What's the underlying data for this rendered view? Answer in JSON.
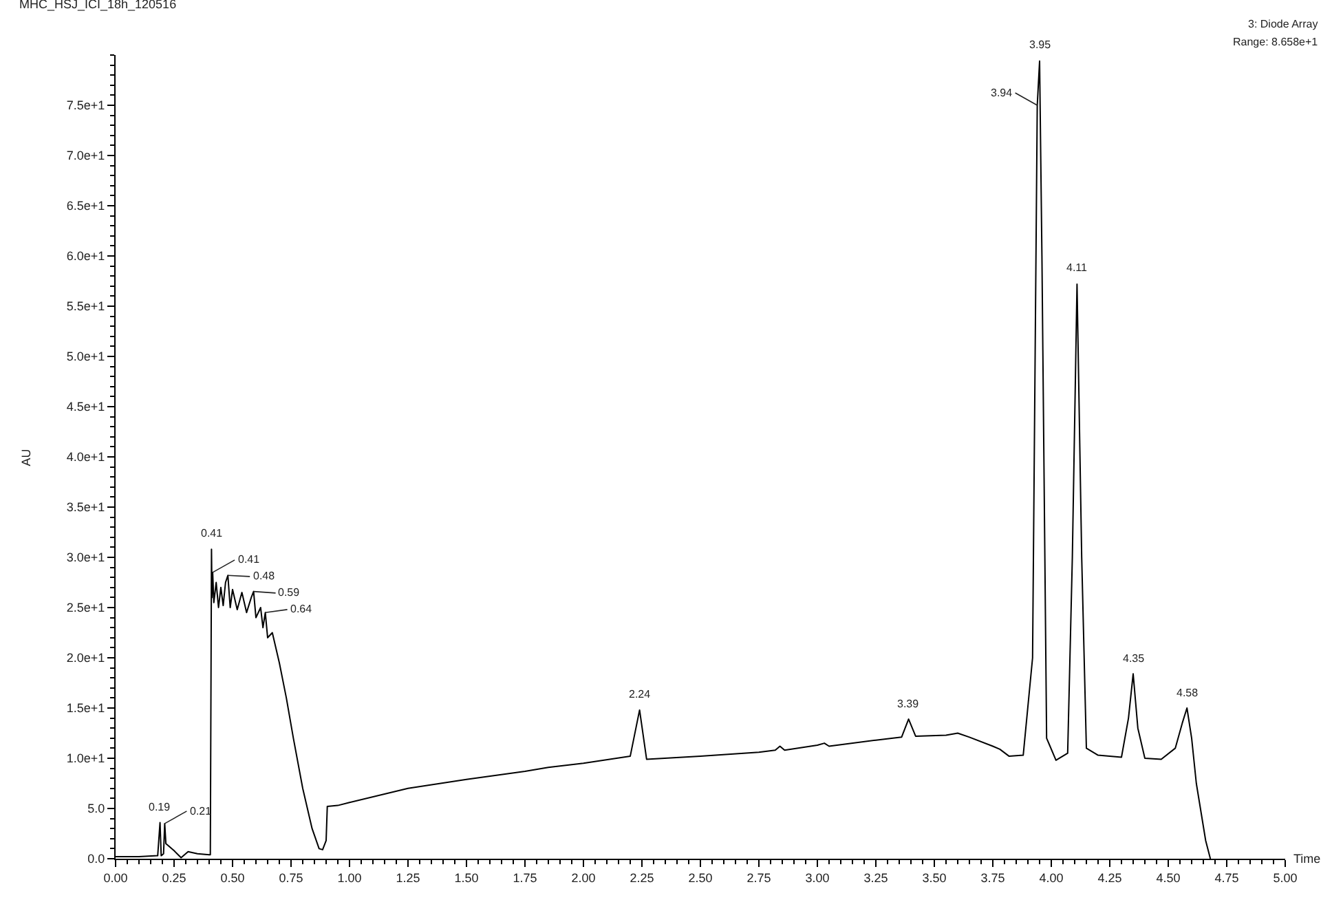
{
  "chart_data": {
    "type": "line",
    "title": "MHC_HSJ_ICI_18h_120516",
    "xlabel": "Time",
    "ylabel": "AU",
    "x": [
      0,
      0.1,
      0.18,
      0.19,
      0.195,
      0.205,
      0.21,
      0.215,
      0.25,
      0.28,
      0.31,
      0.35,
      0.4,
      0.405,
      0.41,
      0.412,
      0.415,
      0.42,
      0.43,
      0.44,
      0.45,
      0.46,
      0.47,
      0.48,
      0.49,
      0.5,
      0.52,
      0.54,
      0.56,
      0.58,
      0.59,
      0.6,
      0.62,
      0.63,
      0.64,
      0.65,
      0.67,
      0.7,
      0.73,
      0.76,
      0.8,
      0.84,
      0.87,
      0.885,
      0.9,
      0.905,
      0.95,
      1.0,
      1.25,
      1.5,
      1.75,
      1.85,
      2.0,
      2.2,
      2.24,
      2.27,
      2.5,
      2.75,
      2.82,
      2.84,
      2.86,
      3.0,
      3.03,
      3.05,
      3.25,
      3.36,
      3.39,
      3.42,
      3.55,
      3.6,
      3.65,
      3.75,
      3.78,
      3.82,
      3.88,
      3.92,
      3.94,
      3.95,
      3.96,
      3.98,
      4.02,
      4.07,
      4.09,
      4.11,
      4.13,
      4.15,
      4.2,
      4.3,
      4.33,
      4.35,
      4.37,
      4.4,
      4.47,
      4.53,
      4.56,
      4.58,
      4.6,
      4.62,
      4.66,
      4.68
    ],
    "values": [
      0.2,
      0.2,
      0.3,
      3.6,
      0.3,
      0.5,
      3.5,
      1.5,
      0.8,
      0.1,
      0.7,
      0.5,
      0.4,
      0.4,
      30.8,
      26,
      28.5,
      25.5,
      27.5,
      25,
      27,
      25.2,
      27.5,
      28.2,
      25,
      26.8,
      24.8,
      26.5,
      24.5,
      26,
      26.6,
      24,
      25,
      23,
      24.5,
      22,
      22.5,
      19.5,
      16,
      12,
      7,
      3,
      1.0,
      0.9,
      1.8,
      5.2,
      5.3,
      5.6,
      7.0,
      7.9,
      8.7,
      9.1,
      9.5,
      10.2,
      14.8,
      9.9,
      10.2,
      10.6,
      10.8,
      11.2,
      10.8,
      11.3,
      11.5,
      11.2,
      11.8,
      12.1,
      13.9,
      12.2,
      12.3,
      12.5,
      12.1,
      11.2,
      10.9,
      10.2,
      10.3,
      20,
      75,
      79.4,
      60,
      12,
      9.8,
      10.5,
      30,
      57.2,
      30,
      11,
      10.3,
      10.1,
      14,
      18.4,
      13,
      10,
      9.9,
      11,
      13.5,
      15.0,
      12,
      7.5,
      1.8,
      0.0
    ],
    "color": "#000000",
    "marker": "none",
    "line_style": "solid",
    "xlim": [
      0,
      5.0
    ],
    "ylim": [
      0,
      80
    ],
    "xticks": [
      {
        "value": 0,
        "label": "0.00"
      },
      {
        "value": 0.25,
        "label": "0.25"
      },
      {
        "value": 0.5,
        "label": "0.50"
      },
      {
        "value": 0.75,
        "label": "0.75"
      },
      {
        "value": 1.0,
        "label": "1.00"
      },
      {
        "value": 1.25,
        "label": "1.25"
      },
      {
        "value": 1.5,
        "label": "1.50"
      },
      {
        "value": 1.75,
        "label": "1.75"
      },
      {
        "value": 2.0,
        "label": "2.00"
      },
      {
        "value": 2.25,
        "label": "2.25"
      },
      {
        "value": 2.5,
        "label": "2.50"
      },
      {
        "value": 2.75,
        "label": "2.75"
      },
      {
        "value": 3.0,
        "label": "3.00"
      },
      {
        "value": 3.25,
        "label": "3.25"
      },
      {
        "value": 3.5,
        "label": "3.50"
      },
      {
        "value": 3.75,
        "label": "3.75"
      },
      {
        "value": 4.0,
        "label": "4.00"
      },
      {
        "value": 4.25,
        "label": "4.25"
      },
      {
        "value": 4.5,
        "label": "4.50"
      },
      {
        "value": 4.75,
        "label": "4.75"
      },
      {
        "value": 5.0,
        "label": "5.00"
      }
    ],
    "yticks": [
      {
        "value": 0,
        "label": "0.0"
      },
      {
        "value": 5,
        "label": "5.0"
      },
      {
        "value": 10,
        "label": "1.0e+1"
      },
      {
        "value": 15,
        "label": "1.5e+1"
      },
      {
        "value": 20,
        "label": "2.0e+1"
      },
      {
        "value": 25,
        "label": "2.5e+1"
      },
      {
        "value": 30,
        "label": "3.0e+1"
      },
      {
        "value": 35,
        "label": "3.5e+1"
      },
      {
        "value": 40,
        "label": "4.0e+1"
      },
      {
        "value": 45,
        "label": "4.5e+1"
      },
      {
        "value": 50,
        "label": "5.0e+1"
      },
      {
        "value": 55,
        "label": "5.5e+1"
      },
      {
        "value": 60,
        "label": "6.0e+1"
      },
      {
        "value": 65,
        "label": "6.5e+1"
      },
      {
        "value": 70,
        "label": "7.0e+1"
      },
      {
        "value": 75,
        "label": "7.5e+1"
      }
    ],
    "annotations": [
      "3: Diode Array",
      "Range: 8.658e+1",
      {
        "text": "0.19",
        "x": 0.19,
        "y": 3.6
      },
      {
        "text": "0.21",
        "x": 0.21,
        "y": 3.5
      },
      {
        "text": "0.41",
        "x": 0.41,
        "y": 30.8
      },
      {
        "text": "0.41",
        "x": 0.415,
        "y": 28.5
      },
      {
        "text": "0.48",
        "x": 0.48,
        "y": 28.2
      },
      {
        "text": "0.59",
        "x": 0.59,
        "y": 26.6
      },
      {
        "text": "0.64",
        "x": 0.64,
        "y": 24.5
      },
      {
        "text": "2.24",
        "x": 2.24,
        "y": 14.8
      },
      {
        "text": "3.39",
        "x": 3.39,
        "y": 13.9
      },
      {
        "text": "3.95",
        "x": 3.95,
        "y": 79.4
      },
      {
        "text": "3.94",
        "x": 3.94,
        "y": 75
      },
      {
        "text": "4.11",
        "x": 4.11,
        "y": 57.2
      },
      {
        "text": "4.35",
        "x": 4.35,
        "y": 18.4
      },
      {
        "text": "4.58",
        "x": 4.58,
        "y": 15.0
      }
    ]
  }
}
